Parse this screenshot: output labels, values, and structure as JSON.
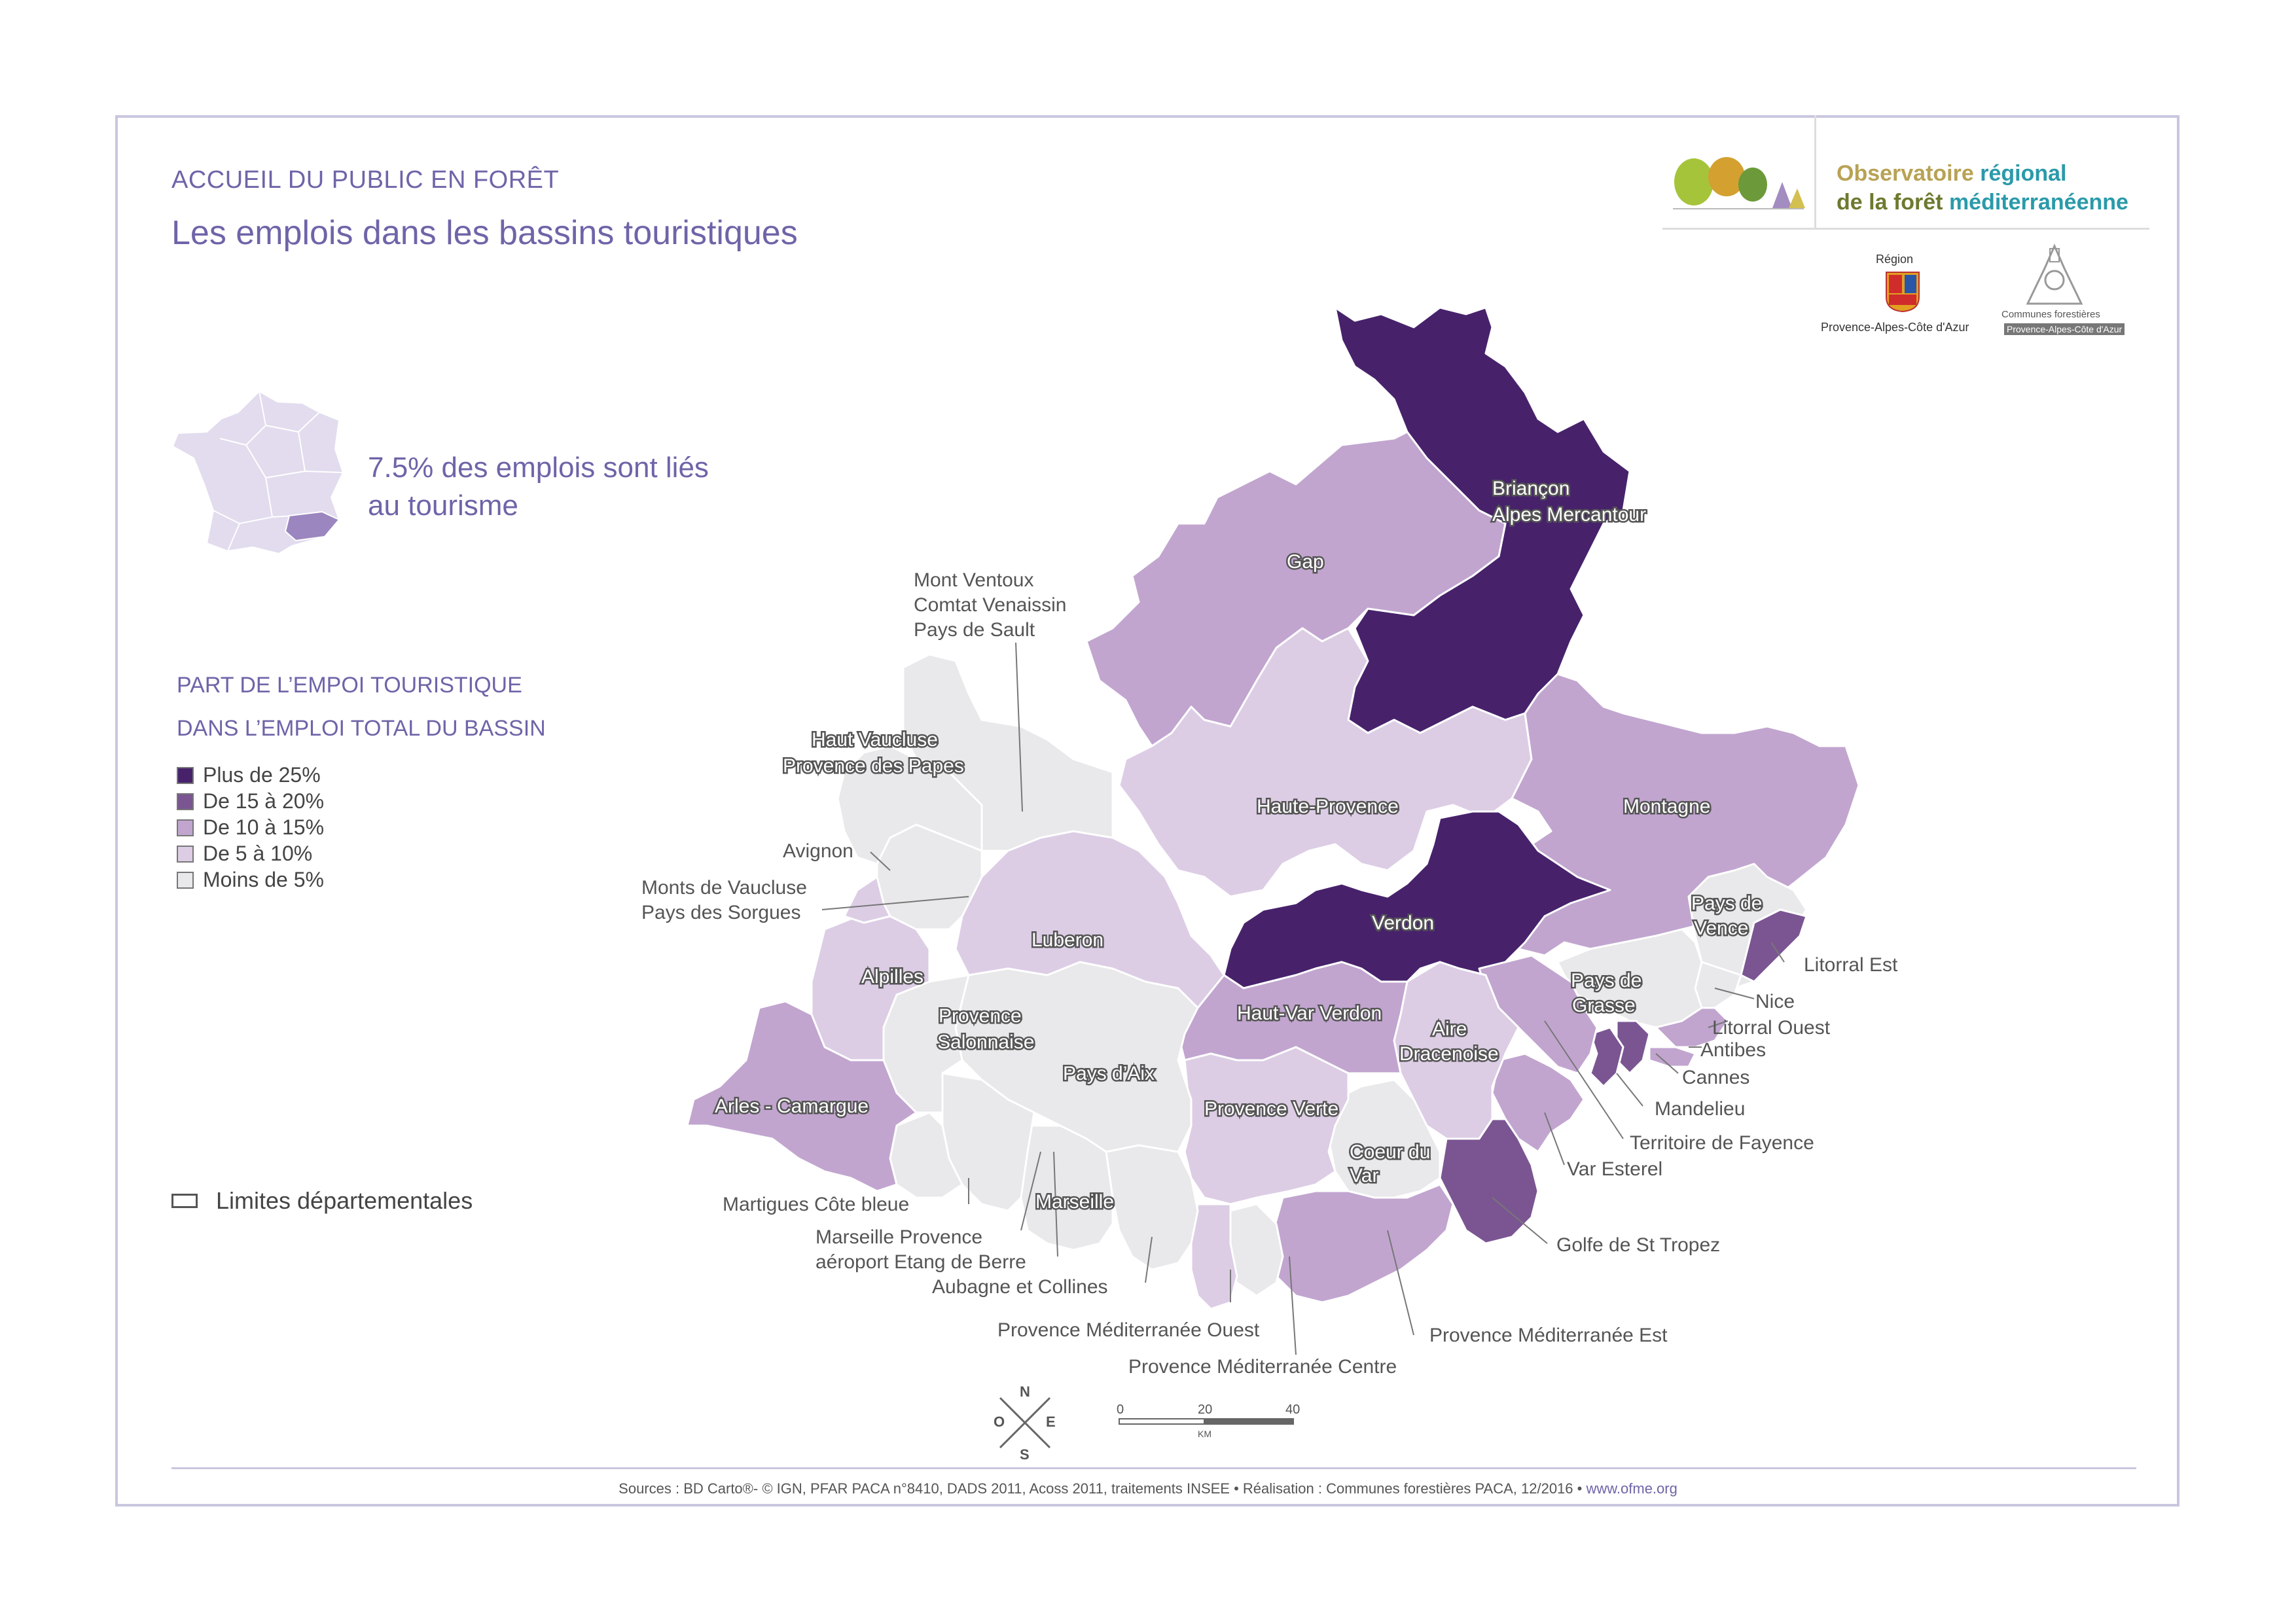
{
  "header": {
    "kicker": "ACCUEIL DU PUBLIC EN FORÊT",
    "title": "Les emplois dans les bassins touristiques"
  },
  "summary": {
    "text": "7.5% des emplois sont liés au tourisme"
  },
  "legend": {
    "title_line1": "PART DE L’EMPOI TOURISTIQUE",
    "title_line2": "DANS L’EMPLOI TOTAL DU BASSIN",
    "classes": [
      {
        "label": "Plus de 25%",
        "color": "#47226b"
      },
      {
        "label": "De 15 à 20%",
        "color": "#7b5592"
      },
      {
        "label": "De 10 à 15%",
        "color": "#c1a5cf"
      },
      {
        "label": "De 5 à 10%",
        "color": "#dccde5"
      },
      {
        "label": "Moins de 5%",
        "color": "#e9e8ea"
      }
    ],
    "dept_limits": "Limites départementales"
  },
  "logos": {
    "ofme_line1_a": "Observatoire ",
    "ofme_line1_b": "régional",
    "ofme_line2_a": "de la ",
    "ofme_line2_b": "forêt ",
    "ofme_line2_c": "méditerranéenne",
    "region_label": "Région",
    "region_name": "Provence-Alpes-Côte d'Azur",
    "cf_label": "Communes forestières",
    "cf_sub": "Provence-Alpes-Côte d'Azur"
  },
  "map": {
    "regions": {
      "briancon": {
        "line1": "Briançon",
        "line2": "Alpes Mercantour",
        "class": "Plus de 25%"
      },
      "gap": {
        "label": "Gap",
        "class": "De 10 à 15%"
      },
      "ventoux": {
        "line1": "Mont Ventoux",
        "line2": "Comtat Venaissin",
        "line3": "Pays de Sault",
        "class": "Moins de 5%"
      },
      "haut_vaucluse": {
        "line1": "Haut Vaucluse",
        "line2": "Provence des Papes",
        "class": "Moins de 5%"
      },
      "haute_provence": {
        "label": "Haute-Provence",
        "class": "De 5 à 10%"
      },
      "montagne": {
        "label": "Montagne",
        "class": "De 10 à 15%"
      },
      "avignon": {
        "label": "Avignon",
        "class": "De 5 à 10%"
      },
      "monts_vaucluse": {
        "line1": "Monts de Vaucluse",
        "line2": "Pays des Sorgues",
        "class": "Moins de 5%"
      },
      "luberon": {
        "label": "Luberon",
        "class": "De 5 à 10%"
      },
      "verdon": {
        "label": "Verdon",
        "class": "Plus de 25%"
      },
      "pays_vence": {
        "line1": "Pays de",
        "line2": "Vence",
        "class": "Moins de 5%"
      },
      "litorral_est": {
        "label": "Litorral Est",
        "class": "De 15 à 20%"
      },
      "alpilles": {
        "label": "Alpilles",
        "class": "De 5 à 10%"
      },
      "salonnaise": {
        "line1": "Provence",
        "line2": "Salonnaise",
        "class": "Moins de 5%"
      },
      "haut_var": {
        "label": "Haut-Var Verdon",
        "class": "De 10 à 15%"
      },
      "aire_dracenoise": {
        "line1": "Aire",
        "line2": "Dracenoise",
        "class": "De 5 à 10%"
      },
      "pays_grasse": {
        "line1": "Pays de",
        "line2": "Grasse",
        "class": "Moins de 5%"
      },
      "nice": {
        "label": "Nice",
        "class": "Moins de 5%"
      },
      "litorral_ouest": {
        "label": "Litorral Ouest",
        "class": "De 10 à 15%"
      },
      "antibes": {
        "label": "Antibes",
        "class": "De 10 à 15%"
      },
      "cannes": {
        "label": "Cannes",
        "class": "De 15 à 20%"
      },
      "arles": {
        "label": "Arles - Camargue",
        "class": "De 10 à 15%"
      },
      "pays_aix": {
        "label": "Pays d’Aix",
        "class": "Moins de 5%"
      },
      "provence_verte": {
        "label": "Provence Verte",
        "class": "De 5 à 10%"
      },
      "mandelieu": {
        "label": "Mandelieu",
        "class": "De 15 à 20%"
      },
      "fayence": {
        "label": "Territoire de Fayence",
        "class": "De 10 à 15%"
      },
      "coeur_var": {
        "line1": "Coeur du",
        "line2": "Var",
        "class": "Moins de 5%"
      },
      "var_esterel": {
        "label": "Var Esterel",
        "class": "De 10 à 15%"
      },
      "martigues": {
        "label": "Martigues Côte bleue",
        "class": "Moins de 5%"
      },
      "marseille": {
        "label": "Marseille",
        "class": "Moins de 5%"
      },
      "marseille_provence": {
        "line1": "Marseille Provence",
        "line2": "aéroport Etang de Berre",
        "class": "Moins de 5%"
      },
      "golfe_tropez": {
        "label": "Golfe de St Tropez",
        "class": "De 15 à 20%"
      },
      "aubagne": {
        "label": "Aubagne et Collines",
        "class": "Moins de 5%"
      },
      "pmo": {
        "label": "Provence Méditerranée Ouest",
        "class": "De 5 à 10%"
      },
      "pme": {
        "label": "Provence Méditerranée Est",
        "class": "De 10 à 15%"
      },
      "pmc": {
        "label": "Provence Méditerranée Centre",
        "class": "Moins de 5%"
      }
    },
    "compass": {
      "n": "N",
      "s": "S",
      "e": "E",
      "o": "O"
    },
    "scale": {
      "t0": "0",
      "t1": "20",
      "t2": "40",
      "unit": "KM"
    }
  },
  "footer": {
    "sources": "Sources : BD Carto®- © IGN, PFAR PACA n°8410,  DADS 2011, Acoss 2011, traitements INSEE • Réalisation : Communes forestières PACA, 12/2016 • ",
    "url": "www.ofme.org"
  }
}
